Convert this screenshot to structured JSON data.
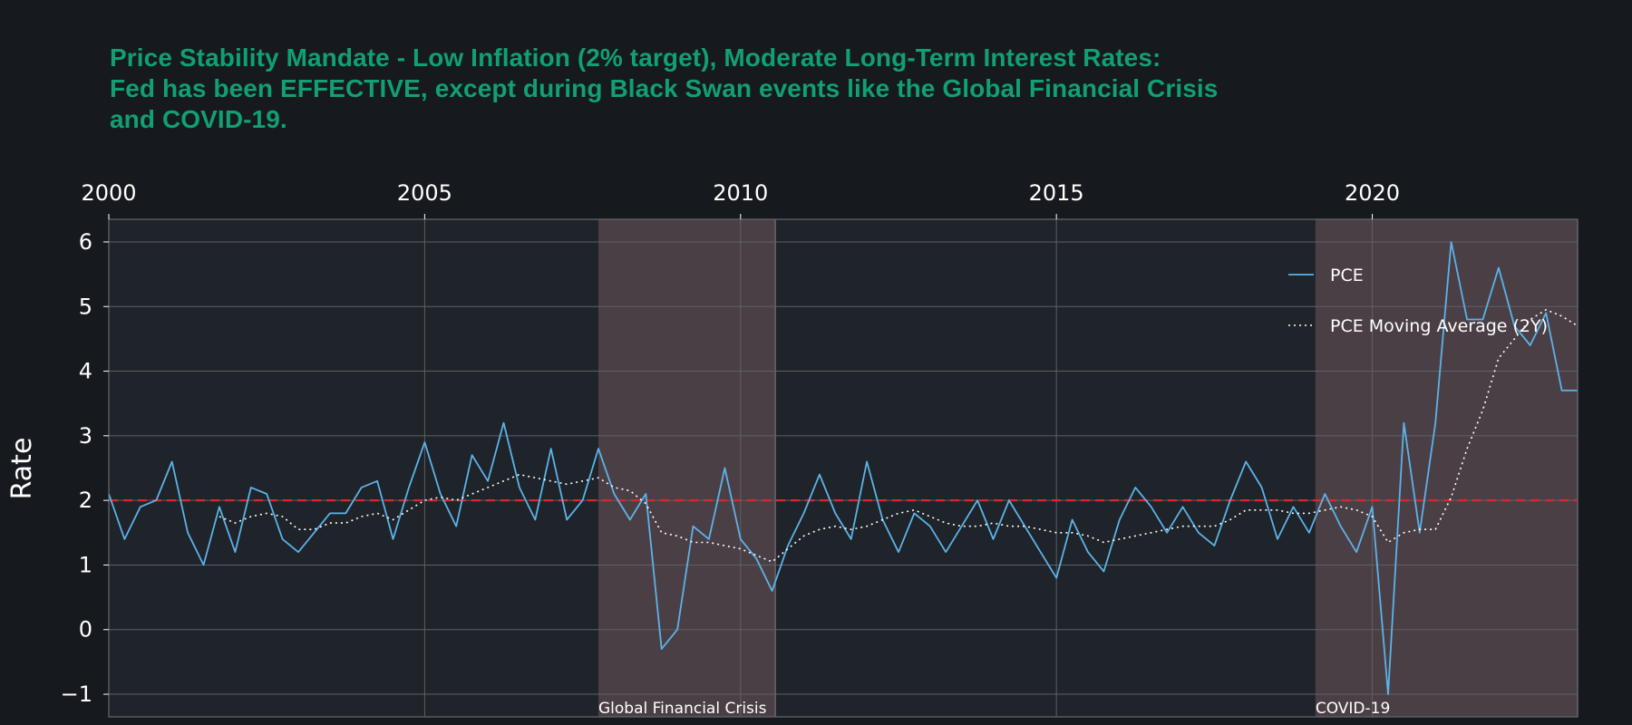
{
  "title_lines": [
    "Price Stability Mandate - Low Inflation (2% target), Moderate Long-Term Interest Rates:",
    "Fed has been EFFECTIVE, except during Black Swan events like the Global Financial Crisis",
    "and COVID-19."
  ],
  "chart_data": {
    "type": "line",
    "title": "Price Stability Mandate - Low Inflation (2% target), Moderate Long-Term Interest Rates: Fed has been EFFECTIVE, except during Black Swan events like the Global Financial Crisis and COVID-19.",
    "ylabel": "Rate",
    "xlabel": "",
    "x_axis_position": "top",
    "xlim": [
      2000.0,
      2023.25
    ],
    "ylim": [
      -1.35,
      6.35
    ],
    "x_ticks": [
      2000,
      2005,
      2010,
      2015,
      2020
    ],
    "x_tick_labels": [
      "2000",
      "2005",
      "2010",
      "2015",
      "2020"
    ],
    "y_ticks": [
      -1,
      0,
      1,
      2,
      3,
      4,
      5,
      6
    ],
    "y_tick_labels": [
      "−1",
      "0",
      "1",
      "2",
      "3",
      "4",
      "5",
      "6"
    ],
    "grid": true,
    "legend_position": "top-right",
    "colors": {
      "background": "#16191d",
      "plot_background": "#1f232a",
      "pce": "#5cb3e8",
      "moving_average": "#ffffff",
      "target_line": "#e0242b",
      "shade": "#4f4249",
      "grid": "#5d6166",
      "title": "#119f73"
    },
    "target_line": {
      "y": 2
    },
    "shaded_periods": [
      {
        "label": "Global Financial Crisis",
        "start": 2007.75,
        "end": 2010.55
      },
      {
        "label": "COVID-19",
        "start": 2019.1,
        "end": 2023.25
      }
    ],
    "series": [
      {
        "name": "PCE",
        "style": "solid",
        "x": [
          2000.0,
          2000.25,
          2000.5,
          2000.75,
          2001.0,
          2001.25,
          2001.5,
          2001.75,
          2002.0,
          2002.25,
          2002.5,
          2002.75,
          2003.0,
          2003.25,
          2003.5,
          2003.75,
          2004.0,
          2004.25,
          2004.5,
          2004.75,
          2005.0,
          2005.25,
          2005.5,
          2005.75,
          2006.0,
          2006.25,
          2006.5,
          2006.75,
          2007.0,
          2007.25,
          2007.5,
          2007.75,
          2008.0,
          2008.25,
          2008.5,
          2008.75,
          2009.0,
          2009.25,
          2009.5,
          2009.75,
          2010.0,
          2010.25,
          2010.5,
          2010.75,
          2011.0,
          2011.25,
          2011.5,
          2011.75,
          2012.0,
          2012.25,
          2012.5,
          2012.75,
          2013.0,
          2013.25,
          2013.5,
          2013.75,
          2014.0,
          2014.25,
          2014.5,
          2014.75,
          2015.0,
          2015.25,
          2015.5,
          2015.75,
          2016.0,
          2016.25,
          2016.5,
          2016.75,
          2017.0,
          2017.25,
          2017.5,
          2017.75,
          2018.0,
          2018.25,
          2018.5,
          2018.75,
          2019.0,
          2019.25,
          2019.5,
          2019.75,
          2020.0,
          2020.25,
          2020.5,
          2020.75,
          2021.0,
          2021.25,
          2021.5,
          2021.75,
          2022.0,
          2022.25,
          2022.5,
          2022.75,
          2023.0,
          2023.25
        ],
        "values": [
          2.1,
          1.4,
          1.9,
          2.0,
          2.6,
          1.5,
          1.0,
          1.9,
          1.2,
          2.2,
          2.1,
          1.4,
          1.2,
          1.5,
          1.8,
          1.8,
          2.2,
          2.3,
          1.4,
          2.2,
          2.9,
          2.1,
          1.6,
          2.7,
          2.3,
          3.2,
          2.2,
          1.7,
          2.8,
          1.7,
          2.0,
          2.8,
          2.1,
          1.7,
          2.1,
          -0.3,
          0.0,
          1.6,
          1.4,
          2.5,
          1.4,
          1.1,
          0.6,
          1.3,
          1.8,
          2.4,
          1.8,
          1.4,
          2.6,
          1.7,
          1.2,
          1.8,
          1.6,
          1.2,
          1.6,
          2.0,
          1.4,
          2.0,
          1.6,
          1.2,
          0.8,
          1.7,
          1.2,
          0.9,
          1.7,
          2.2,
          1.9,
          1.5,
          1.9,
          1.5,
          1.3,
          2.0,
          2.6,
          2.2,
          1.4,
          1.9,
          1.5,
          2.1,
          1.6,
          1.2,
          1.9,
          -1.0,
          3.2,
          1.5,
          3.2,
          6.0,
          4.8,
          4.8,
          5.6,
          4.7,
          4.4,
          4.9,
          3.7,
          3.7
        ]
      },
      {
        "name": "PCE Moving Average (2Y)",
        "style": "dotted",
        "x": [
          2001.75,
          2002.0,
          2002.25,
          2002.5,
          2002.75,
          2003.0,
          2003.25,
          2003.5,
          2003.75,
          2004.0,
          2004.25,
          2004.5,
          2004.75,
          2005.0,
          2005.25,
          2005.5,
          2005.75,
          2006.0,
          2006.25,
          2006.5,
          2006.75,
          2007.0,
          2007.25,
          2007.5,
          2007.75,
          2008.0,
          2008.25,
          2008.5,
          2008.75,
          2009.0,
          2009.25,
          2009.5,
          2009.75,
          2010.0,
          2010.25,
          2010.5,
          2010.75,
          2011.0,
          2011.25,
          2011.5,
          2011.75,
          2012.0,
          2012.25,
          2012.5,
          2012.75,
          2013.0,
          2013.25,
          2013.5,
          2013.75,
          2014.0,
          2014.25,
          2014.5,
          2014.75,
          2015.0,
          2015.25,
          2015.5,
          2015.75,
          2016.0,
          2016.25,
          2016.5,
          2016.75,
          2017.0,
          2017.25,
          2017.5,
          2017.75,
          2018.0,
          2018.25,
          2018.5,
          2018.75,
          2019.0,
          2019.25,
          2019.5,
          2019.75,
          2020.0,
          2020.25,
          2020.5,
          2020.75,
          2021.0,
          2021.25,
          2021.5,
          2021.75,
          2022.0,
          2022.25,
          2022.5,
          2022.75,
          2023.0,
          2023.25
        ],
        "values": [
          1.75,
          1.65,
          1.75,
          1.8,
          1.75,
          1.55,
          1.55,
          1.65,
          1.65,
          1.75,
          1.8,
          1.7,
          1.85,
          2.0,
          2.05,
          2.0,
          2.1,
          2.2,
          2.3,
          2.4,
          2.35,
          2.3,
          2.25,
          2.3,
          2.35,
          2.2,
          2.15,
          1.95,
          1.5,
          1.45,
          1.35,
          1.35,
          1.3,
          1.25,
          1.15,
          1.05,
          1.25,
          1.45,
          1.55,
          1.6,
          1.55,
          1.6,
          1.7,
          1.8,
          1.85,
          1.75,
          1.65,
          1.6,
          1.6,
          1.65,
          1.6,
          1.6,
          1.55,
          1.5,
          1.5,
          1.45,
          1.35,
          1.4,
          1.45,
          1.5,
          1.55,
          1.6,
          1.6,
          1.6,
          1.7,
          1.85,
          1.85,
          1.85,
          1.8,
          1.8,
          1.85,
          1.9,
          1.85,
          1.75,
          1.35,
          1.5,
          1.55,
          1.55,
          2.05,
          2.8,
          3.4,
          4.2,
          4.5,
          4.8,
          4.95,
          4.85,
          4.7
        ]
      }
    ]
  }
}
